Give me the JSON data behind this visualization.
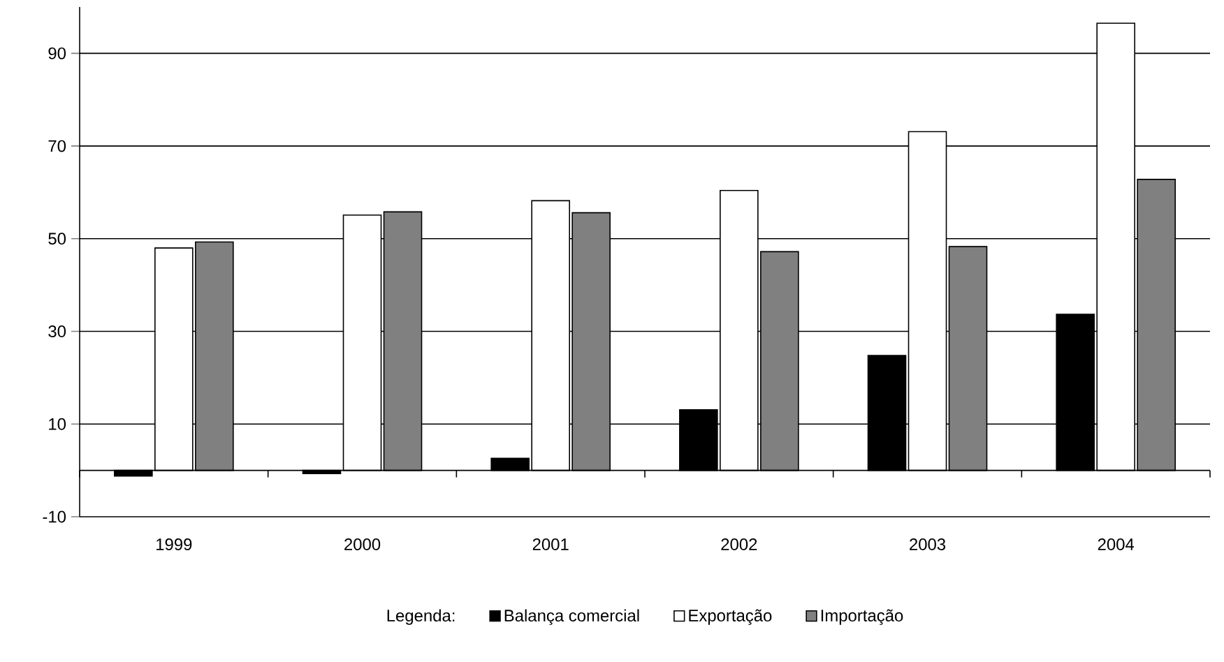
{
  "chart_data": {
    "type": "bar",
    "legend_title": "Legenda:",
    "categories": [
      "1999",
      "2000",
      "2001",
      "2002",
      "2003",
      "2004"
    ],
    "series": [
      {
        "name": "Balança comercial",
        "color": "#000000",
        "values": [
          -1.2,
          -0.7,
          2.6,
          13.1,
          24.8,
          33.7
        ]
      },
      {
        "name": "Exportação",
        "color": "#ffffff",
        "values": [
          48.0,
          55.1,
          58.2,
          60.4,
          73.1,
          96.5
        ]
      },
      {
        "name": "Importação",
        "color": "#808080",
        "values": [
          49.3,
          55.8,
          55.6,
          47.2,
          48.3,
          62.8
        ]
      }
    ],
    "ylim": [
      -10,
      100
    ],
    "yticks": [
      -10,
      10,
      30,
      50,
      70,
      90
    ],
    "grid": "y",
    "legend": "bottom"
  }
}
